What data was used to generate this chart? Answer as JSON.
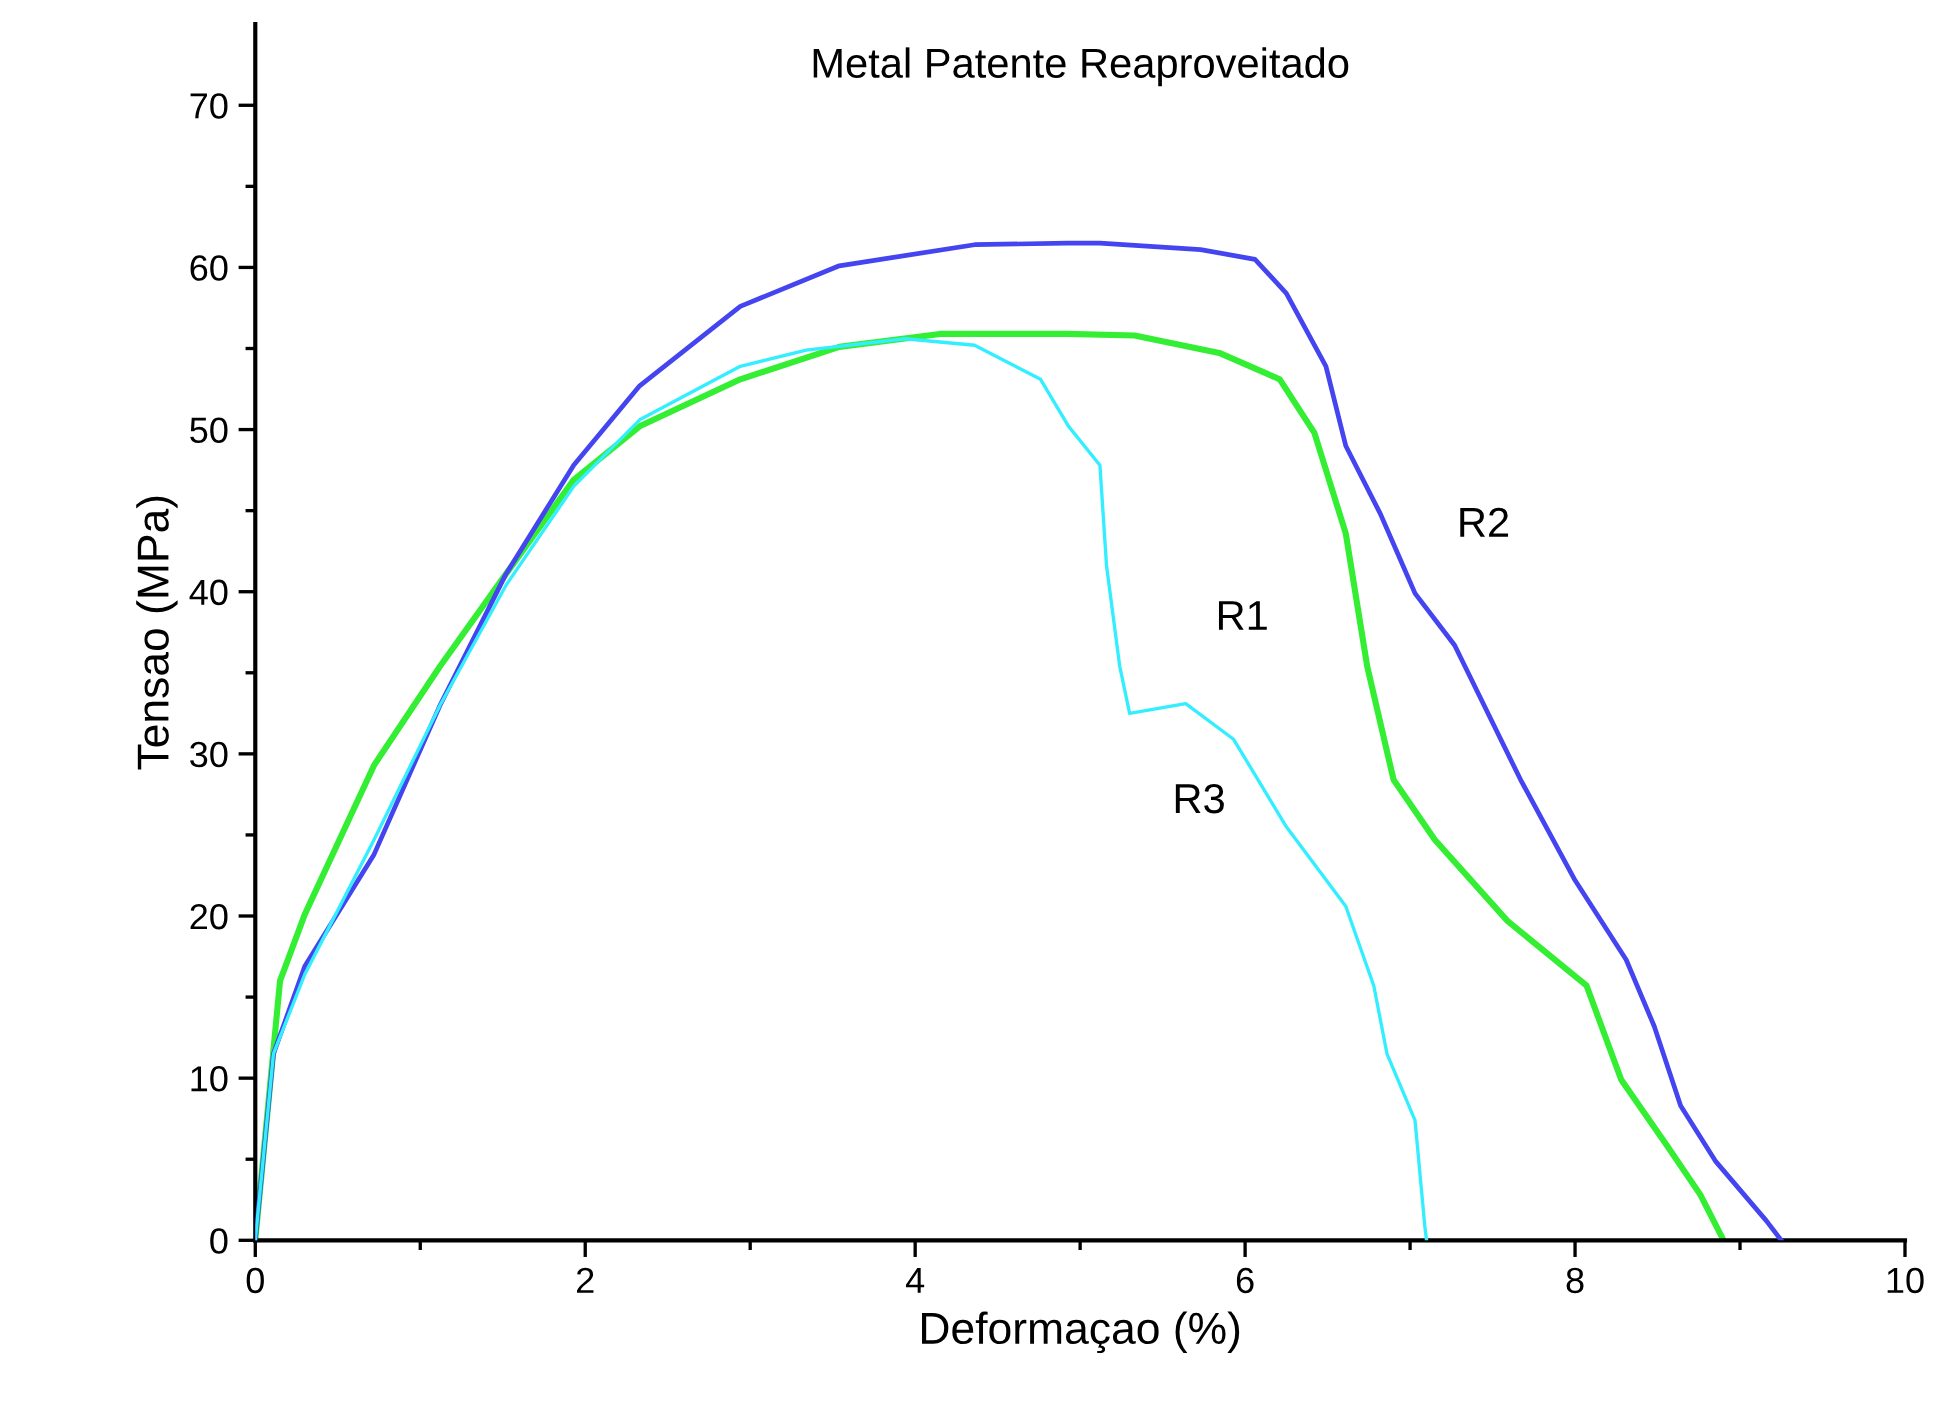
{
  "chart_data": {
    "type": "line",
    "title": "Metal Patente Reaproveitado",
    "xlabel": "Deformaçao (%)",
    "ylabel": "Tensao (MPa)",
    "xlim": [
      0,
      10
    ],
    "ylim": [
      0,
      75
    ],
    "xticks": [
      0,
      {
        "value": 1,
        "label": null
      },
      2,
      {
        "value": 3,
        "label": null
      },
      4,
      {
        "value": 5,
        "label": null
      },
      6,
      {
        "value": 7,
        "label": null
      },
      8,
      {
        "value": 9,
        "label": null
      },
      10
    ],
    "yticks": [
      0,
      {
        "value": 5,
        "label": null
      },
      10,
      {
        "value": 15,
        "label": null
      },
      20,
      {
        "value": 25,
        "label": null
      },
      30,
      {
        "value": 35,
        "label": null
      },
      40,
      {
        "value": 45,
        "label": null
      },
      50,
      {
        "value": 55,
        "label": null
      },
      60,
      {
        "value": 65,
        "label": null
      },
      70
    ],
    "grid": false,
    "legend": false,
    "marker": "none",
    "line_style": "solid",
    "series": [
      {
        "name": "R1",
        "color": "#33ee33",
        "x": [
          0,
          0.15,
          0.3,
          0.72,
          1.12,
          1.52,
          1.93,
          2.33,
          2.94,
          3.54,
          4.15,
          4.92,
          5.33,
          5.85,
          6.21,
          6.42,
          6.61,
          6.74,
          6.9,
          7.15,
          7.59,
          8.07,
          8.28,
          8.56,
          8.76,
          8.9
        ],
        "values": [
          0,
          16,
          20.1,
          29.3,
          35.4,
          41.1,
          46.9,
          50.2,
          53.1,
          55.1,
          55.9,
          55.9,
          55.8,
          54.7,
          53.1,
          49.8,
          43.6,
          35.4,
          28.4,
          24.7,
          19.7,
          15.7,
          9.9,
          5.8,
          2.8,
          0
        ]
      },
      {
        "name": "R2",
        "color": "#4444f0",
        "x": [
          0,
          0.11,
          0.3,
          0.72,
          1.12,
          1.52,
          1.93,
          2.33,
          2.94,
          3.54,
          4.36,
          4.92,
          5.12,
          5.73,
          6.06,
          6.25,
          6.49,
          6.61,
          6.82,
          6.94,
          7.03,
          7.27,
          7.67,
          8.0,
          8.31,
          8.48,
          8.64,
          8.85,
          9.16,
          9.25
        ],
        "values": [
          0,
          11.5,
          16.9,
          23.8,
          33,
          41.1,
          47.8,
          52.7,
          57.6,
          60.1,
          61.4,
          61.5,
          61.5,
          61.1,
          60.5,
          58.4,
          53.9,
          49,
          44.8,
          42,
          39.9,
          36.7,
          28.4,
          22.2,
          17.3,
          13.2,
          8.3,
          4.9,
          1.2,
          0
        ]
      },
      {
        "name": "R3",
        "color": "#33eeff",
        "x": [
          0,
          0.11,
          0.3,
          0.72,
          1.12,
          1.52,
          1.93,
          2.33,
          2.94,
          3.34,
          3.94,
          4.36,
          4.76,
          4.93,
          5.12,
          5.16,
          5.24,
          5.3,
          5.64,
          5.93,
          6.25,
          6.61,
          6.78,
          6.86,
          7.03,
          7.09,
          7.1
        ],
        "values": [
          0,
          11.5,
          16.4,
          24.7,
          33,
          40.4,
          46.5,
          50.6,
          53.9,
          54.9,
          55.6,
          55.2,
          53.1,
          50.2,
          47.8,
          41.6,
          35.4,
          32.5,
          33.1,
          30.9,
          25.5,
          20.6,
          15.7,
          11.5,
          7.4,
          0.8,
          0
        ]
      }
    ]
  }
}
